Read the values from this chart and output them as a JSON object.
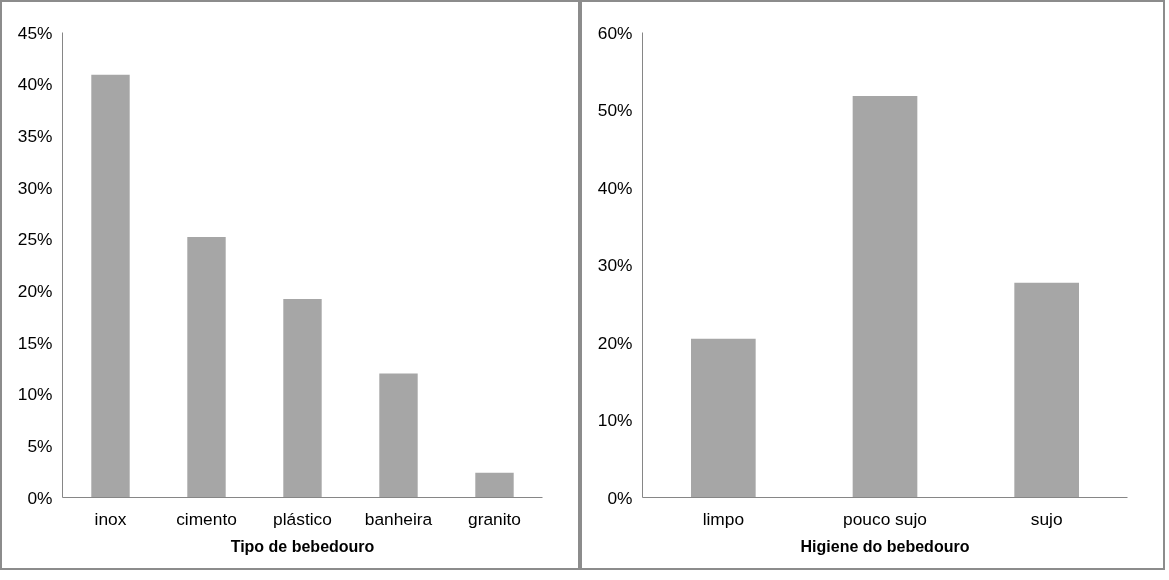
{
  "chart_data": [
    {
      "type": "bar",
      "xlabel": "Tipo de bebedouro",
      "categories": [
        "inox",
        "cimento",
        "plástico",
        "banheira",
        "granito"
      ],
      "values": [
        40.9,
        25.2,
        19.2,
        12.0,
        2.4
      ],
      "color": "#a6a6a6",
      "ylim": [
        0,
        45
      ],
      "yticks": [
        {
          "value": 0,
          "label": "0%"
        },
        {
          "value": 5,
          "label": "5%"
        },
        {
          "value": 10,
          "label": "10%"
        },
        {
          "value": 15,
          "label": "15%"
        },
        {
          "value": 20,
          "label": "20%"
        },
        {
          "value": 25,
          "label": "25%"
        },
        {
          "value": 30,
          "label": "30%"
        },
        {
          "value": 35,
          "label": "35%"
        },
        {
          "value": 40,
          "label": "40%"
        },
        {
          "value": 45,
          "label": "45%"
        }
      ],
      "grid": false
    },
    {
      "type": "bar",
      "xlabel": "Higiene do bebedouro",
      "categories": [
        "limpo",
        "pouco sujo",
        "sujo"
      ],
      "values": [
        20.5,
        51.8,
        27.7
      ],
      "color": "#a6a6a6",
      "ylim": [
        0,
        60
      ],
      "yticks": [
        {
          "value": 0,
          "label": "0%"
        },
        {
          "value": 10,
          "label": "10%"
        },
        {
          "value": 20,
          "label": "20%"
        },
        {
          "value": 30,
          "label": "30%"
        },
        {
          "value": 40,
          "label": "40%"
        },
        {
          "value": 50,
          "label": "50%"
        },
        {
          "value": 60,
          "label": "60%"
        }
      ],
      "grid": false
    }
  ]
}
